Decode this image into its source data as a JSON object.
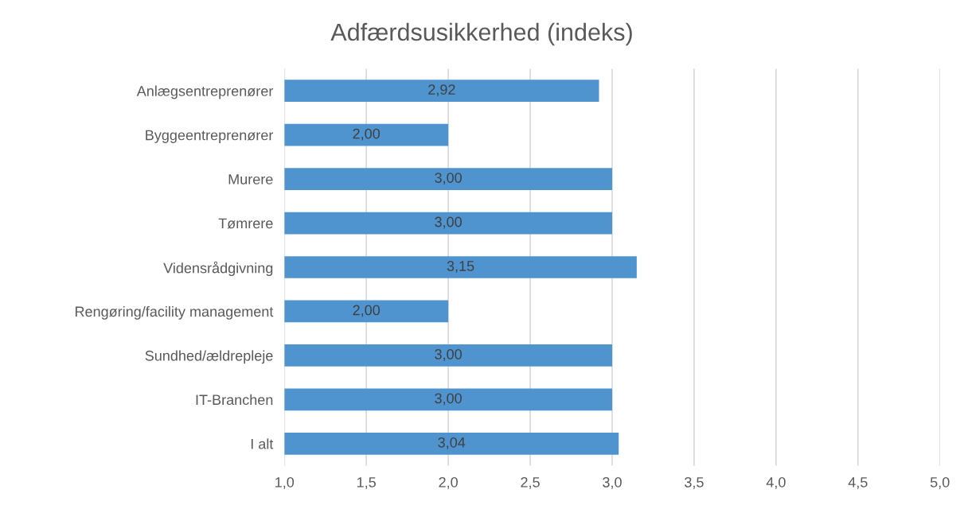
{
  "chart_data": {
    "type": "bar",
    "orientation": "horizontal",
    "title": "Adfærdsusikkerhed (indeks)",
    "categories": [
      "Anlægsentreprenører",
      "Byggeentreprenører",
      "Murere",
      "Tømrere",
      "Vidensrådgivning",
      "Rengøring/facility management",
      "Sundhed/ældrepleje",
      "IT-Branchen",
      "I alt"
    ],
    "values": [
      2.92,
      2.0,
      3.0,
      3.0,
      3.15,
      2.0,
      3.0,
      3.0,
      3.04
    ],
    "value_labels": [
      "2,92",
      "2,00",
      "3,00",
      "3,00",
      "3,15",
      "2,00",
      "3,00",
      "3,00",
      "3,04"
    ],
    "color": "#4f94cf",
    "xlim": [
      1.0,
      5.0
    ],
    "xticks": [
      {
        "value": 1.0,
        "label": "1,0"
      },
      {
        "value": 1.5,
        "label": "1,5"
      },
      {
        "value": 2.0,
        "label": "2,0"
      },
      {
        "value": 2.5,
        "label": "2,5"
      },
      {
        "value": 3.0,
        "label": "3,0"
      },
      {
        "value": 3.5,
        "label": "3,5"
      },
      {
        "value": 4.0,
        "label": "4,0"
      },
      {
        "value": 4.5,
        "label": "4,5"
      },
      {
        "value": 5.0,
        "label": "5,0"
      }
    ],
    "grid": "x",
    "legend": false
  }
}
